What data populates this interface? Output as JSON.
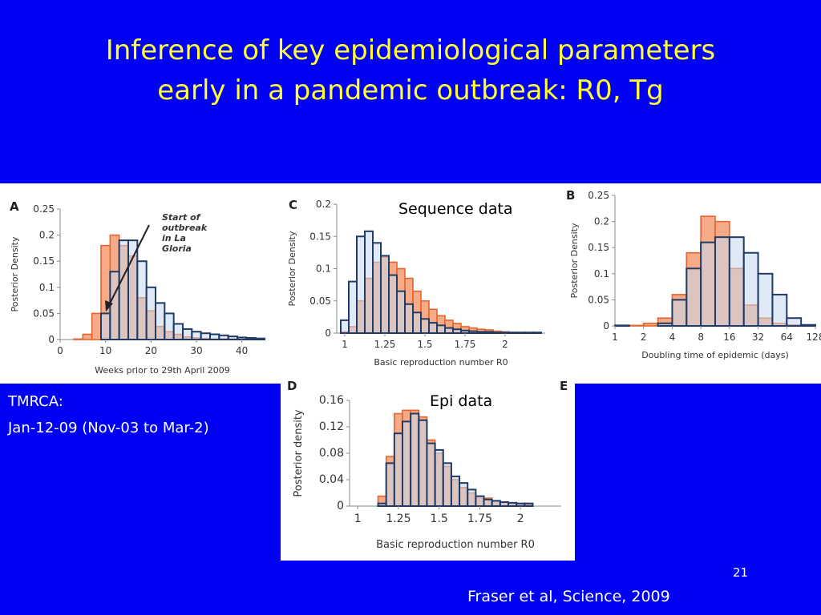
{
  "slide": {
    "title_line1": "Inference of key epidemiological parameters",
    "title_line2": "early in a pandemic outbreak: R0, Tg",
    "tmrca_label": "TMRCA:",
    "tmrca_value": "Jan-12-09 (Nov-03 to Mar-2)",
    "sequence_label": "Sequence data",
    "epi_label": "Epi data",
    "slide_number": "21",
    "citation": "Fraser et al, Science, 2009",
    "colors": {
      "background": "#0000f5",
      "title": "#ffff33",
      "orange_fill": "#f4a582",
      "orange_stroke": "#e8642c",
      "blue_fill": "#c6d9ef",
      "blue_stroke": "#1f3b66"
    }
  },
  "chart_data": [
    {
      "panel": "A",
      "type": "bar",
      "xlabel": "Weeks prior to 29th April 2009",
      "ylabel": "Posterior Density",
      "xlim": [
        0,
        45
      ],
      "ylim": [
        0,
        0.25
      ],
      "xticks": [
        0,
        10,
        20,
        30,
        40
      ],
      "yticks": [
        0,
        0.05,
        0.1,
        0.15,
        0.2,
        0.25
      ],
      "ytick_labels": [
        "0",
        "0.05",
        "0.1",
        "0.15",
        "0.2",
        "0.25"
      ],
      "bin_start": 3,
      "bin_width": 2,
      "series": [
        {
          "color": "orange",
          "values": [
            0.001,
            0.01,
            0.05,
            0.18,
            0.2,
            0.18,
            0.16,
            0.08,
            0.055,
            0.025,
            0.015,
            0.01,
            0.005,
            0.003,
            0.002,
            0.001,
            0.001,
            0.001,
            0.001,
            0.001,
            0.001
          ]
        },
        {
          "color": "blue",
          "values": [
            0,
            0,
            0,
            0.05,
            0.13,
            0.19,
            0.19,
            0.15,
            0.1,
            0.07,
            0.05,
            0.03,
            0.02,
            0.015,
            0.012,
            0.01,
            0.008,
            0.006,
            0.004,
            0.003,
            0.002
          ]
        }
      ],
      "annotation": [
        "Start of",
        "outbreak",
        "in La",
        "Gloria"
      ]
    },
    {
      "panel": "C",
      "type": "bar",
      "xlabel": "Basic reproduction number R0",
      "ylabel": "Posterior Density",
      "xlim": [
        0.95,
        2.25
      ],
      "ylim": [
        0,
        0.2
      ],
      "xticks": [
        1,
        1.25,
        1.5,
        1.75,
        2
      ],
      "xtick_labels": [
        "1",
        "1.25",
        "1.5",
        "1.75",
        "2"
      ],
      "yticks": [
        0,
        0.05,
        0.1,
        0.15,
        0.2
      ],
      "ytick_labels": [
        "0",
        "0.05",
        "0.1",
        "0.15",
        "0.2"
      ],
      "bin_start": 0.975,
      "bin_width": 0.05,
      "series": [
        {
          "color": "orange",
          "values": [
            0.002,
            0.01,
            0.05,
            0.085,
            0.11,
            0.118,
            0.11,
            0.1,
            0.085,
            0.065,
            0.05,
            0.037,
            0.027,
            0.02,
            0.015,
            0.01,
            0.008,
            0.006,
            0.005,
            0.003,
            0.002,
            0.001,
            0.001,
            0.001,
            0.001
          ]
        },
        {
          "color": "blue",
          "values": [
            0.02,
            0.08,
            0.15,
            0.158,
            0.14,
            0.12,
            0.09,
            0.065,
            0.045,
            0.032,
            0.022,
            0.016,
            0.012,
            0.008,
            0.006,
            0.004,
            0.003,
            0.002,
            0.002,
            0.001,
            0.001,
            0.001,
            0.001,
            0.001,
            0.001
          ]
        }
      ]
    },
    {
      "panel": "B",
      "type": "bar",
      "xlabel": "Doubling time of epidemic (days)",
      "ylabel": "Posterior Density",
      "xscale": "log2",
      "xlim": [
        1,
        128
      ],
      "ylim": [
        0,
        0.25
      ],
      "xticks": [
        1,
        2,
        4,
        8,
        16,
        32,
        64,
        128
      ],
      "yticks": [
        0,
        0.05,
        0.1,
        0.15,
        0.2,
        0.25
      ],
      "ytick_labels": [
        "0",
        "0.05",
        "0.1",
        "0.15",
        "0.2",
        "0.25"
      ],
      "bin_edges_log2": [
        0,
        0.5,
        1,
        1.5,
        2,
        2.5,
        3,
        3.5,
        4,
        4.5,
        5,
        5.5,
        6,
        6.5,
        7
      ],
      "series": [
        {
          "color": "orange",
          "values": [
            0.001,
            0.001,
            0.005,
            0.015,
            0.06,
            0.14,
            0.21,
            0.2,
            0.11,
            0.04,
            0.015,
            0.005,
            0.002,
            0.001
          ]
        },
        {
          "color": "blue",
          "values": [
            0.001,
            0,
            0,
            0.005,
            0.05,
            0.11,
            0.16,
            0.17,
            0.17,
            0.14,
            0.1,
            0.06,
            0.015,
            0.002
          ]
        }
      ]
    },
    {
      "panel": "D",
      "type": "bar",
      "xlabel": "Basic reproduction number R0",
      "ylabel": "Posterior density",
      "xlim": [
        0.95,
        2.25
      ],
      "ylim": [
        0,
        0.16
      ],
      "xticks": [
        1,
        1.25,
        1.5,
        1.75,
        2
      ],
      "xtick_labels": [
        "1",
        "1.25",
        "1.5",
        "1.75",
        "2"
      ],
      "yticks": [
        0,
        0.04,
        0.08,
        0.12,
        0.16
      ],
      "ytick_labels": [
        "0",
        "0.04",
        "0.08",
        "0.12",
        "0.16"
      ],
      "bin_start": 1.125,
      "bin_width": 0.05,
      "series": [
        {
          "color": "orange",
          "values": [
            0.015,
            0.075,
            0.14,
            0.145,
            0.145,
            0.135,
            0.1,
            0.08,
            0.06,
            0.04,
            0.028,
            0.02,
            0.015,
            0.012,
            0.008,
            0.006,
            0.004,
            0.003,
            0.002
          ]
        },
        {
          "color": "blue",
          "values": [
            0.004,
            0.065,
            0.11,
            0.128,
            0.14,
            0.13,
            0.095,
            0.085,
            0.065,
            0.045,
            0.035,
            0.025,
            0.015,
            0.01,
            0.008,
            0.006,
            0.005,
            0.004,
            0.004
          ]
        }
      ]
    }
  ]
}
